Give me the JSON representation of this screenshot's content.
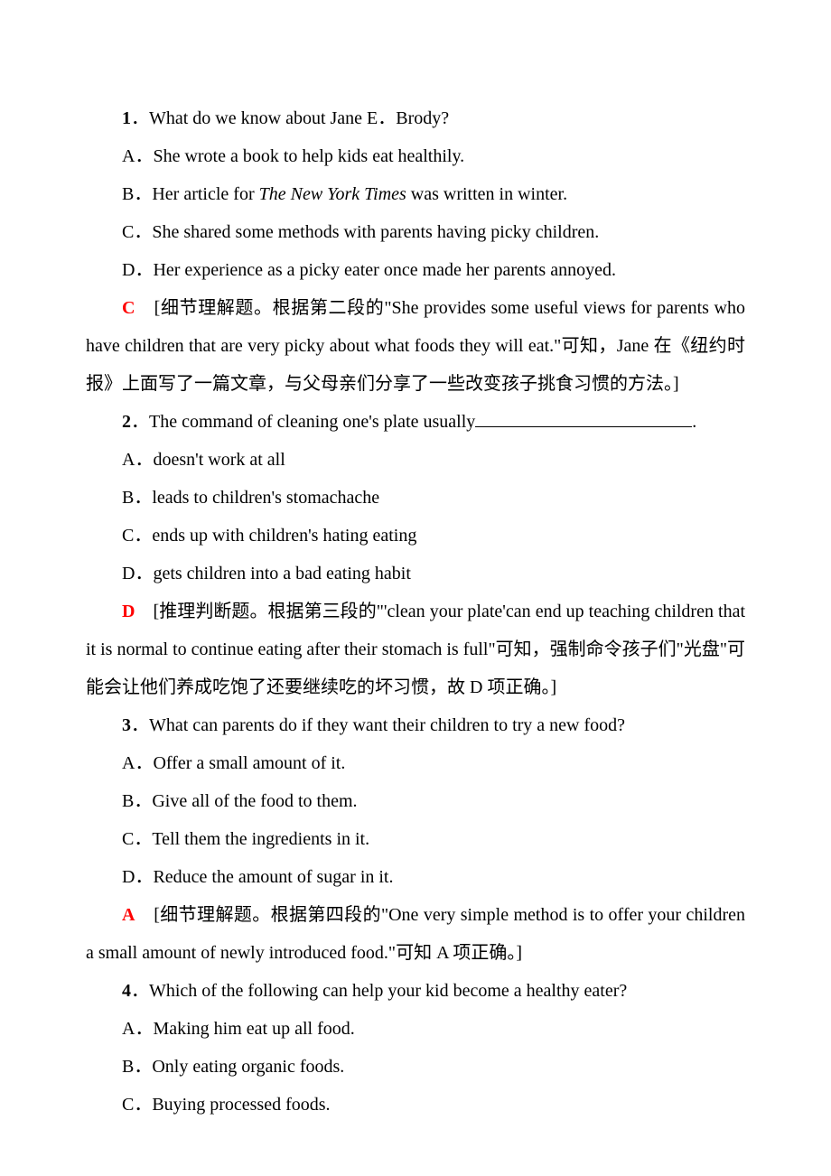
{
  "text_color": "#000000",
  "answer_color": "#ff0000",
  "background_color": "#ffffff",
  "base_fontsize": 20,
  "line_height": 2.1,
  "q1": {
    "number": "1",
    "sep": "．",
    "text": "What do we know about Jane E．Brody?",
    "A": "A．She wrote a book to help kids eat healthily.",
    "B_prefix": "B．Her article for ",
    "B_italic": "The New York Times",
    "B_suffix": " was written in winter.",
    "C": "C．She shared some methods with parents having picky children.",
    "D": "D．Her experience as a picky eater once made her parents annoyed.",
    "answer": "C",
    "explain": "　[细节理解题。根据第二段的\"She provides some useful views for parents who have children that are very picky about what foods they will eat.\"可知，Jane 在《纽约时报》上面写了一篇文章，与父母亲们分享了一些改变孩子挑食习惯的方法。]"
  },
  "q2": {
    "number": "2",
    "sep": "．",
    "text_before": "The command of cleaning one's plate usually",
    "text_after": ".",
    "A": "A．doesn't work at all",
    "B": "B．leads to children's stomachache",
    "C": "C．ends up with children's hating eating",
    "D": "D．gets children into a bad eating habit",
    "answer": "D",
    "explain": "　[推理判断题。根据第三段的\"'clean your plate'can end up teaching children that it is normal to continue eating after their stomach is full\"可知，强制命令孩子们\"光盘\"可能会让他们养成吃饱了还要继续吃的坏习惯，故 D 项正确。]"
  },
  "q3": {
    "number": "3",
    "sep": "．",
    "text": "What can parents do if they want their children to try a new food?",
    "A": "A．Offer a small amount of it.",
    "B": "B．Give all of the food to them.",
    "C": "C．Tell them the ingredients in it.",
    "D": "D．Reduce the amount of sugar in it.",
    "answer": "A",
    "explain": "　[细节理解题。根据第四段的\"One very simple method is to offer your children a small amount of newly introduced food.\"可知 A 项正确。]"
  },
  "q4": {
    "number": "4",
    "sep": "．",
    "text": "Which of the following can help your kid become a healthy eater?",
    "A": "A．Making him eat up all food.",
    "B": "B．Only eating organic foods.",
    "C": "C．Buying processed foods."
  }
}
